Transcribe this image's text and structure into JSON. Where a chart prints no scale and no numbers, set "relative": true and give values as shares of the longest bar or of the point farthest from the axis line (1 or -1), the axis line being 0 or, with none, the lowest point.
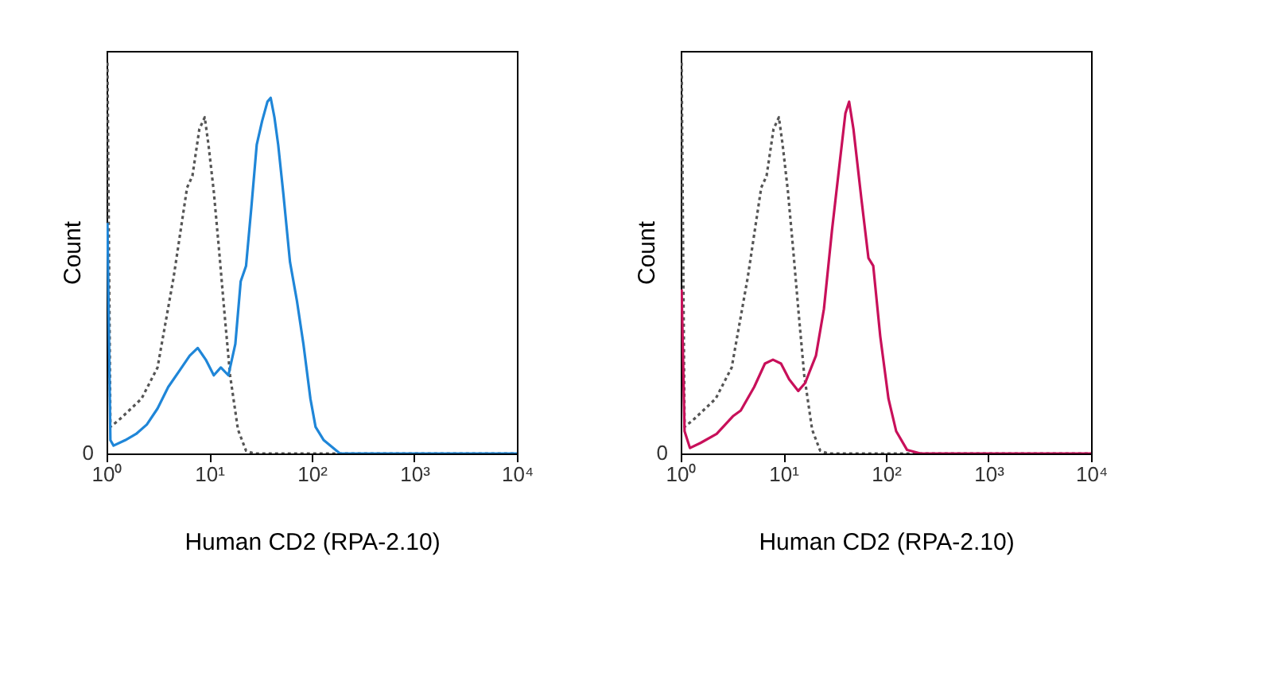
{
  "chart_data": [
    {
      "type": "line",
      "relative": true,
      "ylabel": "Count",
      "xlabel": "Human CD2 (RPA-2.10)",
      "annotations": [
        "0"
      ],
      "log": "x",
      "xlim": [
        1,
        10000
      ],
      "xticks": [
        {
          "value": 1,
          "label": "10⁰"
        },
        {
          "value": 10,
          "label": "10¹"
        },
        {
          "value": 100,
          "label": "10²"
        },
        {
          "value": 1000,
          "label": "10³"
        },
        {
          "value": 10000,
          "label": "10⁴"
        }
      ],
      "series": [
        {
          "color": "#555555",
          "line_style": "dotted",
          "x": [
            1.02,
            1.09,
            1.35,
            2.19,
            3.14,
            4.5,
            6.09,
            6.87,
            8.03,
            9.06,
            9.85,
            11.1,
            12.5,
            14.1,
            16.0,
            19.1,
            22.9,
            27.4,
            10000
          ],
          "values": [
            1.0,
            0.068,
            0.088,
            0.14,
            0.22,
            0.45,
            0.68,
            0.71,
            0.83,
            0.86,
            0.79,
            0.67,
            0.52,
            0.36,
            0.2,
            0.061,
            0.007,
            0,
            0
          ]
        },
        {
          "color": "#1f86d8",
          "line_style": "solid",
          "x": [
            1.02,
            1.09,
            1.17,
            1.52,
            1.94,
            2.47,
            3.14,
            3.99,
            5.08,
            6.46,
            7.74,
            9.27,
            11.1,
            13.0,
            15.4,
            18.0,
            20.3,
            22.9,
            25.8,
            29.1,
            32.8,
            37.0,
            39.8,
            43.3,
            47.1,
            53.1,
            61.4,
            71.8,
            83.0,
            97.1,
            109,
            131,
            188,
            10000
          ],
          "values": [
            0.59,
            0.034,
            0.02,
            0.034,
            0.05,
            0.074,
            0.115,
            0.17,
            0.21,
            0.25,
            0.27,
            0.24,
            0.2,
            0.22,
            0.2,
            0.28,
            0.44,
            0.48,
            0.63,
            0.79,
            0.85,
            0.9,
            0.91,
            0.86,
            0.79,
            0.66,
            0.49,
            0.39,
            0.28,
            0.14,
            0.068,
            0.034,
            0,
            0
          ]
        }
      ]
    },
    {
      "type": "line",
      "relative": true,
      "ylabel": "Count",
      "xlabel": "Human CD2 (RPA-2.10)",
      "annotations": [
        "0"
      ],
      "log": "x",
      "xlim": [
        1,
        10000
      ],
      "xticks": [
        {
          "value": 1,
          "label": "10⁰"
        },
        {
          "value": 10,
          "label": "10¹"
        },
        {
          "value": 100,
          "label": "10²"
        },
        {
          "value": 1000,
          "label": "10³"
        },
        {
          "value": 10000,
          "label": "10⁴"
        }
      ],
      "series": [
        {
          "color": "#555555",
          "line_style": "dotted",
          "x": [
            1.02,
            1.09,
            1.35,
            2.19,
            3.14,
            4.5,
            6.09,
            6.87,
            8.03,
            9.06,
            9.85,
            11.1,
            12.5,
            14.1,
            16.0,
            19.1,
            22.9,
            27.4,
            10000
          ],
          "values": [
            1.0,
            0.068,
            0.088,
            0.14,
            0.22,
            0.45,
            0.68,
            0.71,
            0.83,
            0.86,
            0.79,
            0.67,
            0.52,
            0.36,
            0.2,
            0.061,
            0.007,
            0,
            0
          ]
        },
        {
          "color": "#c8105a",
          "line_style": "solid",
          "x": [
            1.02,
            1.09,
            1.23,
            1.56,
            2.24,
            3.22,
            3.85,
            5.2,
            6.62,
            7.93,
            9.5,
            11.4,
            14.0,
            16.3,
            20.8,
            24.9,
            29.8,
            35.7,
            40.3,
            43.8,
            48.3,
            57.8,
            67.6,
            75.3,
            88.1,
            106,
            126,
            161,
            217,
            10000
          ],
          "values": [
            0.42,
            0.057,
            0.014,
            0.027,
            0.05,
            0.095,
            0.11,
            0.17,
            0.23,
            0.24,
            0.23,
            0.19,
            0.16,
            0.18,
            0.25,
            0.37,
            0.57,
            0.75,
            0.87,
            0.9,
            0.83,
            0.65,
            0.5,
            0.48,
            0.3,
            0.14,
            0.057,
            0.009,
            0,
            0
          ]
        }
      ]
    }
  ]
}
